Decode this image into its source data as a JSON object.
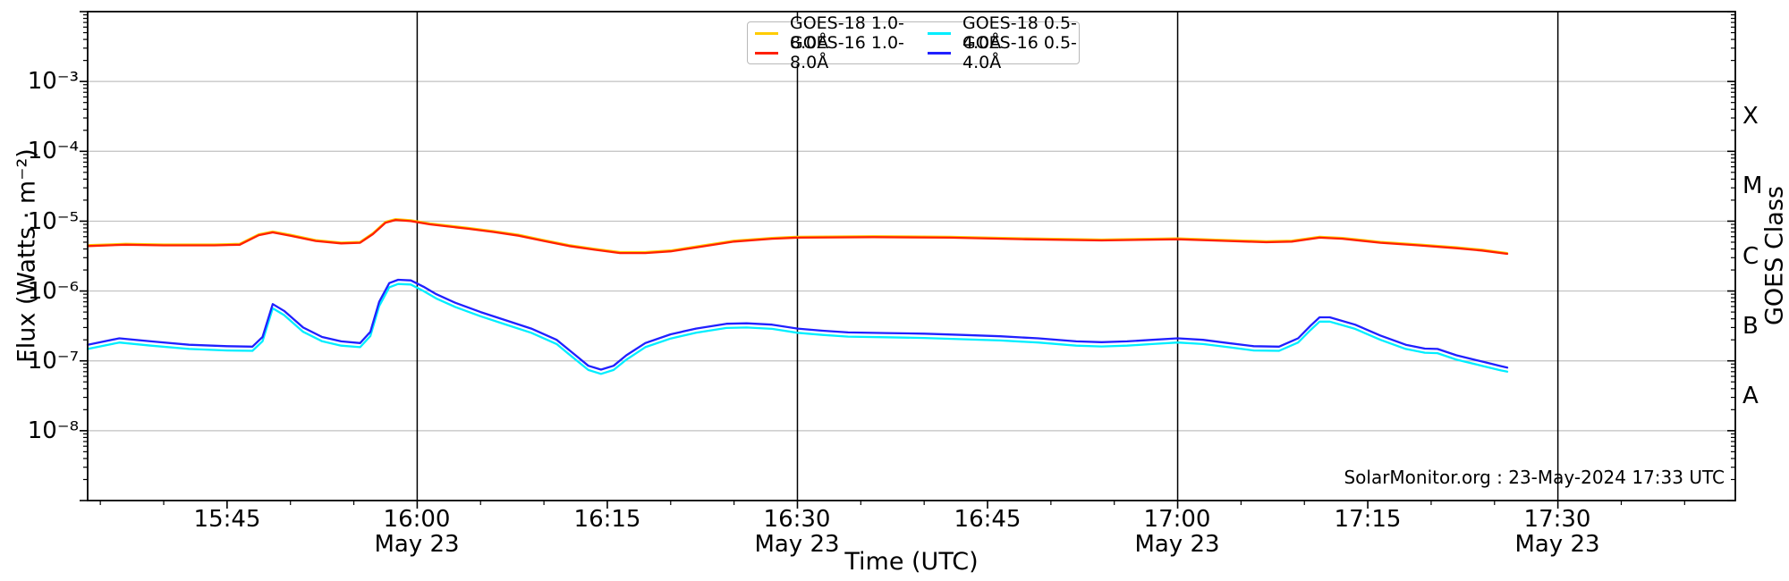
{
  "chart_data": {
    "type": "line",
    "xlabel": "Time (UTC)",
    "ylabel": "Flux (Watts · m⁻²)",
    "ylabel_right": "GOES Class",
    "annotation": "SolarMonitor.org : 23-May-2024 17:33 UTC",
    "grid": true,
    "legend_position": "top-center",
    "x_axis": {
      "unit": "minutes UTC of 23-May-2024",
      "start_min": 934,
      "end_min": 1064,
      "minor_tick_step_min": 5,
      "ticks": [
        {
          "min": 945,
          "label": "15:45",
          "date": ""
        },
        {
          "min": 960,
          "label": "16:00",
          "date": "May 23"
        },
        {
          "min": 975,
          "label": "16:15",
          "date": ""
        },
        {
          "min": 990,
          "label": "16:30",
          "date": "May 23"
        },
        {
          "min": 1005,
          "label": "16:45",
          "date": ""
        },
        {
          "min": 1020,
          "label": "17:00",
          "date": "May 23"
        },
        {
          "min": 1035,
          "label": "17:15",
          "date": ""
        },
        {
          "min": 1050,
          "label": "17:30",
          "date": "May 23"
        }
      ]
    },
    "y_axis": {
      "scale": "log",
      "min": 1e-09,
      "max": 0.01,
      "tick_exps": [
        -3,
        -4,
        -5,
        -6,
        -7,
        -8
      ],
      "tick_labels": [
        "10⁻³",
        "10⁻⁴",
        "10⁻⁵",
        "10⁻⁶",
        "10⁻⁷",
        "10⁻⁸"
      ]
    },
    "right_axis": {
      "classes": [
        {
          "label": "X",
          "center_exp": -3.5
        },
        {
          "label": "M",
          "center_exp": -4.5
        },
        {
          "label": "C",
          "center_exp": -5.5
        },
        {
          "label": "B",
          "center_exp": -6.5
        },
        {
          "label": "A",
          "center_exp": -7.5
        }
      ]
    },
    "colors": {
      "goes18_long": "#ffcc00",
      "goes16_long": "#ff2000",
      "goes18_short": "#00eeff",
      "goes16_short": "#2020ff",
      "gridline": "#c0c0c0",
      "vline": "#000000"
    },
    "series": [
      {
        "name": "GOES-18 1.0-8.0Å",
        "color": "#ffcc00",
        "points": [
          [
            934,
            4.53e-06
          ],
          [
            937,
            4.74e-06
          ],
          [
            940,
            4.64e-06
          ],
          [
            944,
            4.64e-06
          ],
          [
            946,
            4.74e-06
          ],
          [
            947.5,
            6.49e-06
          ],
          [
            948.6,
            7.11e-06
          ],
          [
            950,
            6.39e-06
          ],
          [
            952,
            5.36e-06
          ],
          [
            954,
            4.94e-06
          ],
          [
            955.5,
            5.05e-06
          ],
          [
            956.5,
            6.7e-06
          ],
          [
            957.5,
            9.79e-06
          ],
          [
            958.3,
            1.07e-05
          ],
          [
            959.5,
            1.03e-05
          ],
          [
            961,
            9.27e-06
          ],
          [
            964,
            8.03e-06
          ],
          [
            966,
            7.21e-06
          ],
          [
            968,
            6.39e-06
          ],
          [
            970,
            5.36e-06
          ],
          [
            972,
            4.53e-06
          ],
          [
            974,
            4.02e-06
          ],
          [
            976,
            3.61e-06
          ],
          [
            978,
            3.61e-06
          ],
          [
            980,
            3.81e-06
          ],
          [
            982,
            4.33e-06
          ],
          [
            985,
            5.25e-06
          ],
          [
            988,
            5.77e-06
          ],
          [
            990,
            5.97e-06
          ],
          [
            996,
            6.08e-06
          ],
          [
            1002,
            5.97e-06
          ],
          [
            1008,
            5.67e-06
          ],
          [
            1014,
            5.46e-06
          ],
          [
            1020,
            5.67e-06
          ],
          [
            1024,
            5.36e-06
          ],
          [
            1027,
            5.15e-06
          ],
          [
            1029,
            5.25e-06
          ],
          [
            1031.2,
            5.97e-06
          ],
          [
            1033,
            5.77e-06
          ],
          [
            1036,
            5.05e-06
          ],
          [
            1039,
            4.64e-06
          ],
          [
            1042,
            4.22e-06
          ],
          [
            1044,
            3.91e-06
          ],
          [
            1046,
            3.5e-06
          ]
        ]
      },
      {
        "name": "GOES-16 1.0-8.0Å",
        "color": "#ff2000",
        "points": [
          [
            934,
            4.4e-06
          ],
          [
            937,
            4.6e-06
          ],
          [
            940,
            4.5e-06
          ],
          [
            944,
            4.5e-06
          ],
          [
            946,
            4.6e-06
          ],
          [
            947.5,
            6.3e-06
          ],
          [
            948.6,
            6.9e-06
          ],
          [
            950,
            6.2e-06
          ],
          [
            952,
            5.2e-06
          ],
          [
            954,
            4.8e-06
          ],
          [
            955.5,
            4.9e-06
          ],
          [
            956.5,
            6.5e-06
          ],
          [
            957.5,
            9.5e-06
          ],
          [
            958.3,
            1.04e-05
          ],
          [
            959.5,
            1e-05
          ],
          [
            961,
            9e-06
          ],
          [
            964,
            7.8e-06
          ],
          [
            966,
            7e-06
          ],
          [
            968,
            6.2e-06
          ],
          [
            970,
            5.2e-06
          ],
          [
            972,
            4.4e-06
          ],
          [
            974,
            3.9e-06
          ],
          [
            976,
            3.5e-06
          ],
          [
            978,
            3.5e-06
          ],
          [
            980,
            3.7e-06
          ],
          [
            982,
            4.2e-06
          ],
          [
            985,
            5.1e-06
          ],
          [
            988,
            5.6e-06
          ],
          [
            990,
            5.8e-06
          ],
          [
            996,
            5.9e-06
          ],
          [
            1002,
            5.8e-06
          ],
          [
            1008,
            5.5e-06
          ],
          [
            1014,
            5.3e-06
          ],
          [
            1020,
            5.5e-06
          ],
          [
            1024,
            5.2e-06
          ],
          [
            1027,
            5e-06
          ],
          [
            1029,
            5.1e-06
          ],
          [
            1031.2,
            5.8e-06
          ],
          [
            1033,
            5.6e-06
          ],
          [
            1036,
            4.9e-06
          ],
          [
            1039,
            4.5e-06
          ],
          [
            1042,
            4.1e-06
          ],
          [
            1044,
            3.8e-06
          ],
          [
            1046,
            3.4e-06
          ]
        ]
      },
      {
        "name": "GOES-18 0.5-4.0Å",
        "color": "#00eeff",
        "points": [
          [
            934,
            1.48e-07
          ],
          [
            936.5,
            1.83e-07
          ],
          [
            939,
            1.65e-07
          ],
          [
            942,
            1.48e-07
          ],
          [
            945,
            1.41e-07
          ],
          [
            947,
            1.39e-07
          ],
          [
            947.8,
            1.91e-07
          ],
          [
            948.6,
            5.66e-07
          ],
          [
            949.5,
            4.52e-07
          ],
          [
            951,
            2.61e-07
          ],
          [
            952.5,
            1.91e-07
          ],
          [
            954,
            1.65e-07
          ],
          [
            955.5,
            1.57e-07
          ],
          [
            956.3,
            2.26e-07
          ],
          [
            957,
            6.09e-07
          ],
          [
            957.8,
            1.13e-06
          ],
          [
            958.5,
            1.26e-06
          ],
          [
            959.5,
            1.24e-06
          ],
          [
            960.5,
            1e-06
          ],
          [
            961.5,
            7.83e-07
          ],
          [
            963,
            5.92e-07
          ],
          [
            965,
            4.35e-07
          ],
          [
            967,
            3.31e-07
          ],
          [
            969,
            2.52e-07
          ],
          [
            971,
            1.74e-07
          ],
          [
            972.5,
            1.04e-07
          ],
          [
            973.5,
            7.4e-08
          ],
          [
            974.5,
            6.5e-08
          ],
          [
            975.5,
            7.4e-08
          ],
          [
            976.5,
            1.04e-07
          ],
          [
            978,
            1.57e-07
          ],
          [
            980,
            2.09e-07
          ],
          [
            982,
            2.52e-07
          ],
          [
            984.4,
            2.96e-07
          ],
          [
            986,
            3e-07
          ],
          [
            988,
            2.87e-07
          ],
          [
            990,
            2.52e-07
          ],
          [
            992,
            2.35e-07
          ],
          [
            994,
            2.22e-07
          ],
          [
            997,
            2.18e-07
          ],
          [
            1000,
            2.13e-07
          ],
          [
            1003,
            2.04e-07
          ],
          [
            1006,
            1.96e-07
          ],
          [
            1009,
            1.83e-07
          ],
          [
            1012,
            1.65e-07
          ],
          [
            1014,
            1.61e-07
          ],
          [
            1016,
            1.65e-07
          ],
          [
            1018,
            1.74e-07
          ],
          [
            1020,
            1.83e-07
          ],
          [
            1022,
            1.74e-07
          ],
          [
            1024,
            1.57e-07
          ],
          [
            1026,
            1.41e-07
          ],
          [
            1028,
            1.39e-07
          ],
          [
            1029.5,
            1.83e-07
          ],
          [
            1030.5,
            2.78e-07
          ],
          [
            1031.2,
            3.65e-07
          ],
          [
            1032,
            3.65e-07
          ],
          [
            1034,
            2.87e-07
          ],
          [
            1036,
            2e-07
          ],
          [
            1038,
            1.48e-07
          ],
          [
            1039.5,
            1.31e-07
          ],
          [
            1040.5,
            1.29e-07
          ],
          [
            1042,
            1.04e-07
          ],
          [
            1044,
            8.5e-08
          ],
          [
            1045.5,
            7.3e-08
          ],
          [
            1046,
            7e-08
          ]
        ]
      },
      {
        "name": "GOES-16 0.5-4.0Å",
        "color": "#2020ff",
        "points": [
          [
            934,
            1.7e-07
          ],
          [
            936.5,
            2.1e-07
          ],
          [
            939,
            1.9e-07
          ],
          [
            942,
            1.7e-07
          ],
          [
            945,
            1.62e-07
          ],
          [
            947,
            1.6e-07
          ],
          [
            947.8,
            2.2e-07
          ],
          [
            948.6,
            6.5e-07
          ],
          [
            949.5,
            5.2e-07
          ],
          [
            951,
            3e-07
          ],
          [
            952.5,
            2.2e-07
          ],
          [
            954,
            1.9e-07
          ],
          [
            955.5,
            1.8e-07
          ],
          [
            956.3,
            2.6e-07
          ],
          [
            957,
            7e-07
          ],
          [
            957.8,
            1.3e-06
          ],
          [
            958.5,
            1.45e-06
          ],
          [
            959.5,
            1.42e-06
          ],
          [
            960.5,
            1.15e-06
          ],
          [
            961.5,
            9e-07
          ],
          [
            963,
            6.8e-07
          ],
          [
            965,
            5e-07
          ],
          [
            967,
            3.8e-07
          ],
          [
            969,
            2.9e-07
          ],
          [
            971,
            2e-07
          ],
          [
            972.5,
            1.2e-07
          ],
          [
            973.5,
            8.5e-08
          ],
          [
            974.5,
            7.5e-08
          ],
          [
            975.5,
            8.5e-08
          ],
          [
            976.5,
            1.2e-07
          ],
          [
            978,
            1.8e-07
          ],
          [
            980,
            2.4e-07
          ],
          [
            982,
            2.9e-07
          ],
          [
            984.4,
            3.4e-07
          ],
          [
            986,
            3.45e-07
          ],
          [
            988,
            3.3e-07
          ],
          [
            990,
            2.9e-07
          ],
          [
            992,
            2.7e-07
          ],
          [
            994,
            2.55e-07
          ],
          [
            997,
            2.5e-07
          ],
          [
            1000,
            2.45e-07
          ],
          [
            1003,
            2.35e-07
          ],
          [
            1006,
            2.25e-07
          ],
          [
            1009,
            2.1e-07
          ],
          [
            1012,
            1.9e-07
          ],
          [
            1014,
            1.85e-07
          ],
          [
            1016,
            1.9e-07
          ],
          [
            1018,
            2e-07
          ],
          [
            1020,
            2.1e-07
          ],
          [
            1022,
            2e-07
          ],
          [
            1024,
            1.8e-07
          ],
          [
            1026,
            1.62e-07
          ],
          [
            1028,
            1.6e-07
          ],
          [
            1029.5,
            2.1e-07
          ],
          [
            1030.5,
            3.2e-07
          ],
          [
            1031.2,
            4.2e-07
          ],
          [
            1032,
            4.2e-07
          ],
          [
            1034,
            3.3e-07
          ],
          [
            1036,
            2.3e-07
          ],
          [
            1038,
            1.7e-07
          ],
          [
            1039.5,
            1.5e-07
          ],
          [
            1040.5,
            1.48e-07
          ],
          [
            1042,
            1.2e-07
          ],
          [
            1044,
            9.8e-08
          ],
          [
            1045.5,
            8.4e-08
          ],
          [
            1046,
            8e-08
          ]
        ]
      }
    ]
  }
}
